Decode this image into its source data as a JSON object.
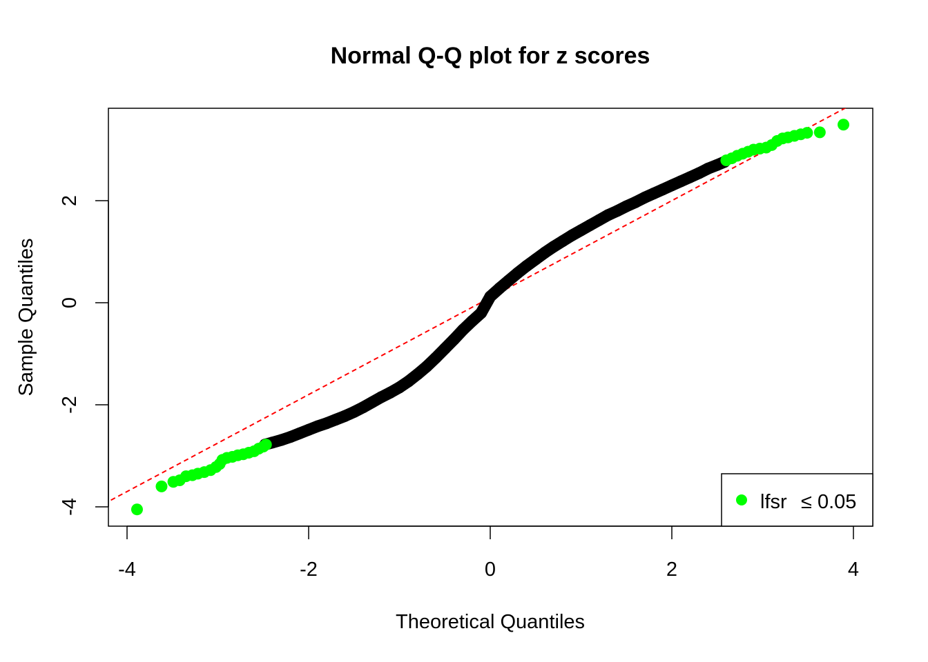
{
  "chart_data": {
    "type": "scatter",
    "title": "Normal Q-Q plot for z scores",
    "xlabel": "Theoretical Quantiles",
    "ylabel": "Sample Quantiles",
    "xlim": [
      -4.2,
      4.2
    ],
    "ylim": [
      -4.35,
      3.8
    ],
    "x_ticks": [
      -4,
      -2,
      0,
      2,
      4
    ],
    "x_tick_labels": [
      "-4",
      "-2",
      "0",
      "2",
      "4"
    ],
    "y_ticks": [
      -4,
      -2,
      0,
      2
    ],
    "y_tick_labels": [
      "-4",
      "-2",
      "0",
      "2"
    ],
    "grid": false,
    "legend": {
      "position": "bottom-right",
      "entries": [
        {
          "label": "lfsr",
          "suffix": "≤ 0.05",
          "color": "#00ff00"
        }
      ]
    },
    "reference_line": {
      "intercept": 0.1,
      "slope": 0.95,
      "color": "#ff0000",
      "style": "dashed"
    },
    "series": [
      {
        "color": "#000000",
        "points": [
          [
            -2.48,
            -2.78
          ],
          [
            -2.4,
            -2.74
          ],
          [
            -2.3,
            -2.69
          ],
          [
            -2.2,
            -2.63
          ],
          [
            -2.1,
            -2.56
          ],
          [
            -2.0,
            -2.49
          ],
          [
            -1.9,
            -2.42
          ],
          [
            -1.8,
            -2.36
          ],
          [
            -1.7,
            -2.29
          ],
          [
            -1.6,
            -2.22
          ],
          [
            -1.5,
            -2.14
          ],
          [
            -1.4,
            -2.05
          ],
          [
            -1.3,
            -1.95
          ],
          [
            -1.2,
            -1.85
          ],
          [
            -1.1,
            -1.76
          ],
          [
            -1.0,
            -1.66
          ],
          [
            -0.9,
            -1.54
          ],
          [
            -0.8,
            -1.4
          ],
          [
            -0.7,
            -1.25
          ],
          [
            -0.6,
            -1.08
          ],
          [
            -0.5,
            -0.9
          ],
          [
            -0.4,
            -0.72
          ],
          [
            -0.3,
            -0.53
          ],
          [
            -0.2,
            -0.36
          ],
          [
            -0.1,
            -0.2
          ],
          [
            0.0,
            0.12
          ],
          [
            0.1,
            0.28
          ],
          [
            0.2,
            0.43
          ],
          [
            0.3,
            0.58
          ],
          [
            0.4,
            0.72
          ],
          [
            0.5,
            0.85
          ],
          [
            0.6,
            0.98
          ],
          [
            0.7,
            1.1
          ],
          [
            0.8,
            1.21
          ],
          [
            0.9,
            1.32
          ],
          [
            1.0,
            1.42
          ],
          [
            1.1,
            1.52
          ],
          [
            1.2,
            1.62
          ],
          [
            1.3,
            1.72
          ],
          [
            1.4,
            1.8
          ],
          [
            1.5,
            1.89
          ],
          [
            1.6,
            1.97
          ],
          [
            1.7,
            2.06
          ],
          [
            1.8,
            2.14
          ],
          [
            1.9,
            2.22
          ],
          [
            2.0,
            2.3
          ],
          [
            2.1,
            2.38
          ],
          [
            2.2,
            2.46
          ],
          [
            2.3,
            2.54
          ],
          [
            2.4,
            2.63
          ],
          [
            2.5,
            2.7
          ],
          [
            2.58,
            2.76
          ]
        ]
      },
      {
        "name": "lfsr ≤ 0.05",
        "color": "#00ff00",
        "points": [
          [
            -3.89,
            -4.05
          ],
          [
            -3.62,
            -3.6
          ],
          [
            -3.49,
            -3.51
          ],
          [
            -3.42,
            -3.48
          ],
          [
            -3.35,
            -3.4
          ],
          [
            -3.28,
            -3.38
          ],
          [
            -3.22,
            -3.35
          ],
          [
            -3.15,
            -3.32
          ],
          [
            -3.08,
            -3.28
          ],
          [
            -3.02,
            -3.22
          ],
          [
            -2.98,
            -3.16
          ],
          [
            -2.95,
            -3.08
          ],
          [
            -2.9,
            -3.04
          ],
          [
            -2.84,
            -3.02
          ],
          [
            -2.78,
            -2.99
          ],
          [
            -2.72,
            -2.97
          ],
          [
            -2.66,
            -2.94
          ],
          [
            -2.6,
            -2.91
          ],
          [
            -2.55,
            -2.86
          ],
          [
            -2.5,
            -2.82
          ],
          [
            -2.47,
            -2.78
          ],
          [
            2.6,
            2.79
          ],
          [
            2.66,
            2.83
          ],
          [
            2.72,
            2.88
          ],
          [
            2.78,
            2.92
          ],
          [
            2.84,
            2.96
          ],
          [
            2.9,
            3.0
          ],
          [
            2.97,
            3.02
          ],
          [
            3.04,
            3.04
          ],
          [
            3.1,
            3.09
          ],
          [
            3.16,
            3.17
          ],
          [
            3.22,
            3.22
          ],
          [
            3.28,
            3.24
          ],
          [
            3.35,
            3.27
          ],
          [
            3.42,
            3.3
          ],
          [
            3.49,
            3.33
          ],
          [
            3.63,
            3.34
          ],
          [
            3.89,
            3.49
          ]
        ]
      }
    ]
  }
}
